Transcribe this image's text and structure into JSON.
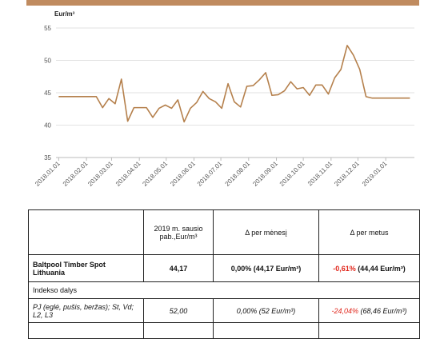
{
  "chart_data": {
    "type": "line",
    "y_label": "Eur/m³",
    "x": [
      "2018.01.01",
      "2018.01.08",
      "2018.01.15",
      "2018.01.22",
      "2018.01.29",
      "2018.02.05",
      "2018.02.12",
      "2018.02.19",
      "2018.02.26",
      "2018.03.05",
      "2018.03.12",
      "2018.03.19",
      "2018.03.26",
      "2018.04.02",
      "2018.04.09",
      "2018.04.16",
      "2018.04.23",
      "2018.04.30",
      "2018.05.07",
      "2018.05.14",
      "2018.05.21",
      "2018.05.28",
      "2018.06.04",
      "2018.06.11",
      "2018.06.18",
      "2018.06.25",
      "2018.07.02",
      "2018.07.09",
      "2018.07.16",
      "2018.07.23",
      "2018.07.30",
      "2018.08.06",
      "2018.08.13",
      "2018.08.20",
      "2018.08.27",
      "2018.09.03",
      "2018.09.10",
      "2018.09.17",
      "2018.09.24",
      "2018.10.01",
      "2018.10.08",
      "2018.10.15",
      "2018.10.22",
      "2018.10.29",
      "2018.11.05",
      "2018.11.12",
      "2018.11.19",
      "2018.11.26",
      "2018.12.03",
      "2018.12.10",
      "2018.12.17",
      "2018.12.24",
      "2018.12.31",
      "2019.01.07",
      "2019.01.14",
      "2019.01.21",
      "2019.01.28"
    ],
    "series": [
      {
        "color": "#b5804c",
        "values": [
          44.4,
          44.4,
          44.4,
          44.4,
          44.4,
          44.4,
          44.4,
          42.7,
          44.1,
          43.3,
          47.1,
          40.6,
          42.7,
          42.7,
          42.7,
          41.2,
          42.6,
          43.1,
          42.6,
          43.9,
          40.5,
          42.6,
          43.5,
          45.2,
          44.1,
          43.6,
          42.6,
          46.4,
          43.6,
          42.8,
          46.0,
          46.1,
          47.0,
          48.1,
          44.6,
          44.7,
          45.3,
          46.7,
          45.6,
          45.8,
          44.6,
          46.2,
          46.2,
          44.8,
          47.3,
          48.6,
          52.3,
          50.8,
          48.6,
          44.4,
          44.17,
          44.17,
          44.17,
          44.17,
          44.17,
          44.17,
          44.17
        ]
      }
    ],
    "xlim": [
      "2017.12.29",
      "2019.02.02"
    ],
    "xticks": [
      "2018.01.01",
      "2018.02.01",
      "2018.03.01",
      "2018.04.01",
      "2018.05.01",
      "2018.06.01",
      "2018.07.01",
      "2018.08.01",
      "2018.09.01",
      "2018.10.01",
      "2018.11.01",
      "2018.12.01",
      "2019.01.01"
    ],
    "ylim": [
      35,
      55
    ],
    "yticks": [
      35,
      40,
      45,
      50,
      55
    ],
    "grid": true
  },
  "table": {
    "header": [
      "2019 m. sausio pab.,Eur/m³",
      "Δ per mėnesį",
      "Δ per metus"
    ],
    "rows": [
      {
        "name": "Baltpool Timber Spot Lithuania",
        "value": "44,17",
        "month": {
          "change": "0,00%",
          "base": "(44,17 Eur/m³)"
        },
        "year": {
          "change": "-0,61%",
          "base": "(44,44 Eur/m³)"
        }
      },
      {
        "section": "Indekso dalys"
      },
      {
        "name": "PJ (eglė, pušis, beržas); St, Vd; L2, L3",
        "value": "52,00",
        "month": {
          "change": "0,00%",
          "base": "(52 Eur/m³)"
        },
        "year": {
          "change": "-24,04%",
          "base": "(68,46 Eur/m³)"
        }
      }
    ]
  }
}
